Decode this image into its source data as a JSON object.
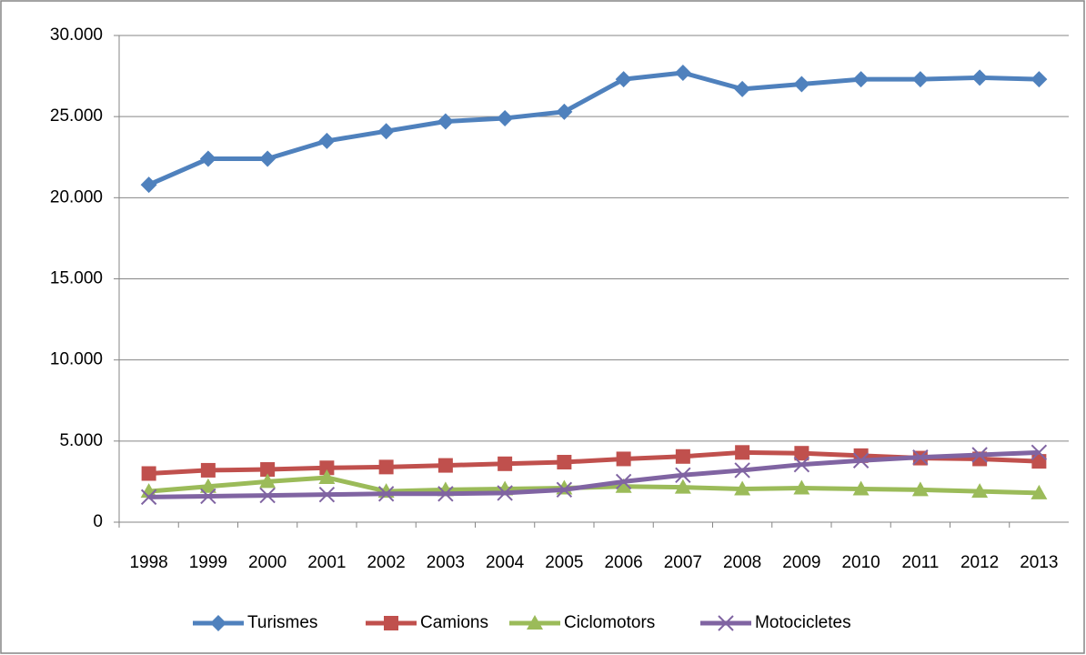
{
  "chart_data": {
    "type": "line",
    "categories": [
      "1998",
      "1999",
      "2000",
      "2001",
      "2002",
      "2003",
      "2004",
      "2005",
      "2006",
      "2007",
      "2008",
      "2009",
      "2010",
      "2011",
      "2012",
      "2013"
    ],
    "series": [
      {
        "name": "Turismes",
        "color": "#4f81bd",
        "marker": "diamond",
        "values": [
          20800,
          22400,
          22400,
          23500,
          24100,
          24700,
          24900,
          25300,
          27300,
          27700,
          26700,
          27000,
          27300,
          27300,
          27400,
          27300
        ]
      },
      {
        "name": "Camions",
        "color": "#c0504d",
        "marker": "square",
        "values": [
          3000,
          3200,
          3250,
          3350,
          3400,
          3500,
          3600,
          3700,
          3900,
          4050,
          4300,
          4250,
          4100,
          3950,
          3900,
          3750
        ]
      },
      {
        "name": "Ciclomotors",
        "color": "#9bbb59",
        "marker": "triangle",
        "values": [
          1900,
          2200,
          2500,
          2750,
          1900,
          2000,
          2050,
          2100,
          2200,
          2150,
          2050,
          2100,
          2050,
          2000,
          1900,
          1800
        ]
      },
      {
        "name": "Motocicletes",
        "color": "#8064a2",
        "marker": "x",
        "values": [
          1550,
          1600,
          1650,
          1700,
          1750,
          1750,
          1800,
          2000,
          2500,
          2900,
          3200,
          3550,
          3800,
          4000,
          4150,
          4300
        ]
      }
    ],
    "ylim": [
      0,
      30000
    ],
    "yticks": [
      0,
      {
        "value": 5000,
        "label": "5.000"
      },
      {
        "value": 10000,
        "label": "10.000"
      },
      {
        "value": 15000,
        "label": "15.000"
      },
      {
        "value": 20000,
        "label": "20.000"
      },
      {
        "value": 25000,
        "label": "25.000"
      },
      {
        "value": 30000,
        "label": "30.000"
      }
    ],
    "grid": true,
    "legend": "bottom"
  }
}
